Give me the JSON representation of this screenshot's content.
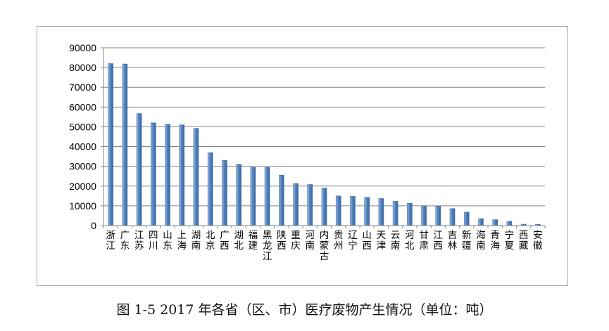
{
  "caption": "图 1-5 2017 年各省（区、市）医疗废物产生情况（单位：吨）",
  "colors": {
    "bar": "#4f81bd",
    "bar_light": "#a9c4e8",
    "axis": "#868686",
    "grid": "#868686",
    "text": "#000000"
  },
  "chart_data": {
    "type": "bar",
    "title": "",
    "xlabel": "",
    "ylabel": "",
    "ylim": [
      0,
      90000
    ],
    "yticks": [
      0,
      10000,
      20000,
      30000,
      40000,
      50000,
      60000,
      70000,
      80000,
      90000
    ],
    "grid": true,
    "categories": [
      [
        "浙",
        "江"
      ],
      [
        "广",
        "东"
      ],
      [
        "江",
        "苏"
      ],
      [
        "四",
        "川"
      ],
      [
        "山",
        "东"
      ],
      [
        "上",
        "海"
      ],
      [
        "湖",
        "南"
      ],
      [
        "北",
        "京"
      ],
      [
        "广",
        "西"
      ],
      [
        "湖",
        "北"
      ],
      [
        "福",
        "建"
      ],
      [
        "黑",
        "龙",
        "江"
      ],
      [
        "陕",
        "西"
      ],
      [
        "重",
        "庆"
      ],
      [
        "河",
        "南"
      ],
      [
        "内",
        "蒙",
        "古"
      ],
      [
        "贵",
        "州"
      ],
      [
        "辽",
        "宁"
      ],
      [
        "山",
        "西"
      ],
      [
        "天",
        "津"
      ],
      [
        "云",
        "南"
      ],
      [
        "河",
        "北"
      ],
      [
        "甘",
        "肃"
      ],
      [
        "江",
        "西"
      ],
      [
        "吉",
        "林"
      ],
      [
        "新",
        "疆"
      ],
      [
        "海",
        "南"
      ],
      [
        "青",
        "海"
      ],
      [
        "宁",
        "夏"
      ],
      [
        "西",
        "藏"
      ],
      [
        "安",
        "徽"
      ]
    ],
    "values": [
      82000,
      81800,
      56700,
      52000,
      51300,
      51000,
      49200,
      36900,
      33000,
      31000,
      29500,
      29500,
      25500,
      21300,
      20800,
      19000,
      15000,
      14800,
      14300,
      13700,
      12300,
      11300,
      10000,
      9800,
      8600,
      6800,
      3500,
      3000,
      2200,
      700,
      600
    ]
  }
}
